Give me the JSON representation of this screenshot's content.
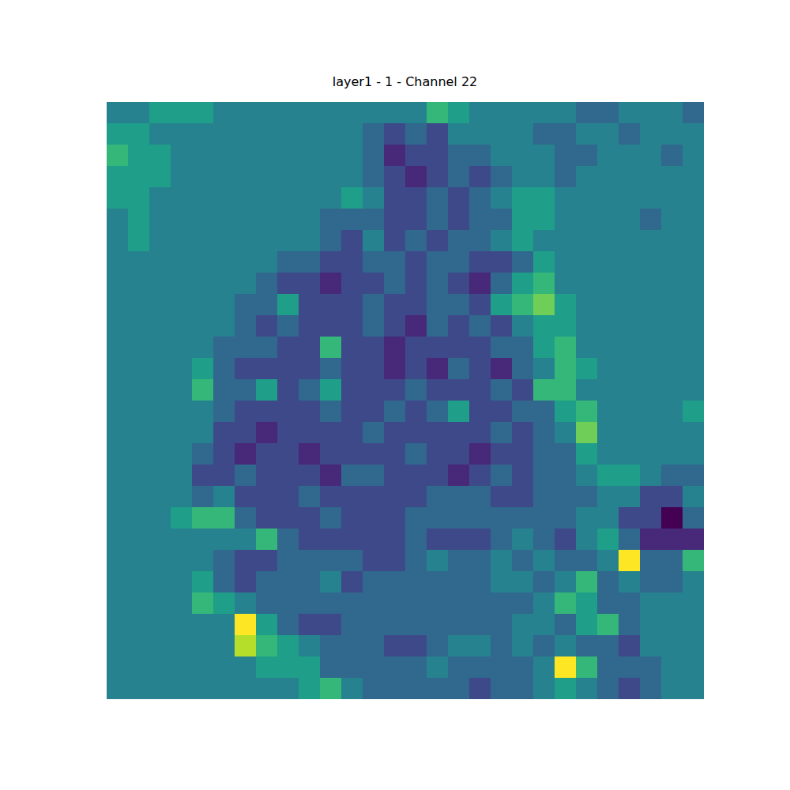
{
  "chart_data": {
    "type": "heatmap",
    "title": "layer1 - 1 - Channel 22",
    "color": "viridis",
    "tick_labels": false,
    "cells": [
      [
        4,
        4,
        5,
        5,
        5,
        4,
        4,
        4,
        4,
        4,
        4,
        4,
        4,
        4,
        4,
        6,
        5,
        4,
        4,
        4,
        4,
        4,
        3,
        3,
        4,
        4,
        4,
        3
      ],
      [
        5,
        5,
        4,
        4,
        4,
        4,
        4,
        4,
        4,
        4,
        4,
        4,
        3,
        2,
        3,
        2,
        4,
        4,
        4,
        4,
        3,
        3,
        4,
        4,
        3,
        4,
        4,
        4
      ],
      [
        6,
        5,
        5,
        4,
        4,
        4,
        4,
        4,
        4,
        4,
        4,
        4,
        3,
        1,
        2,
        2,
        3,
        3,
        4,
        4,
        4,
        3,
        3,
        4,
        4,
        4,
        3,
        4
      ],
      [
        5,
        5,
        5,
        4,
        4,
        4,
        4,
        4,
        4,
        4,
        4,
        4,
        3,
        2,
        1,
        2,
        3,
        2,
        3,
        4,
        4,
        3,
        4,
        4,
        4,
        4,
        4,
        4
      ],
      [
        5,
        5,
        4,
        4,
        4,
        4,
        4,
        4,
        4,
        4,
        4,
        5,
        4,
        2,
        2,
        3,
        2,
        3,
        4,
        5,
        5,
        4,
        4,
        4,
        4,
        4,
        4,
        4
      ],
      [
        4,
        5,
        4,
        4,
        4,
        4,
        4,
        4,
        4,
        4,
        3,
        3,
        3,
        2,
        2,
        3,
        2,
        3,
        3,
        5,
        5,
        4,
        4,
        4,
        4,
        3,
        4,
        4
      ],
      [
        4,
        5,
        4,
        4,
        4,
        4,
        4,
        4,
        4,
        4,
        3,
        2,
        4,
        2,
        3,
        2,
        3,
        3,
        4,
        5,
        4,
        4,
        4,
        4,
        4,
        4,
        4,
        4
      ],
      [
        4,
        4,
        4,
        4,
        4,
        4,
        4,
        4,
        3,
        3,
        2,
        2,
        3,
        3,
        2,
        3,
        3,
        2,
        2,
        3,
        5,
        4,
        4,
        4,
        4,
        4,
        4,
        4
      ],
      [
        4,
        4,
        4,
        4,
        4,
        4,
        4,
        3,
        2,
        2,
        1,
        2,
        2,
        3,
        2,
        3,
        2,
        1,
        3,
        5,
        6,
        4,
        4,
        4,
        4,
        4,
        4,
        4
      ],
      [
        4,
        4,
        4,
        4,
        4,
        4,
        3,
        3,
        5,
        2,
        2,
        2,
        3,
        2,
        2,
        3,
        3,
        2,
        5,
        6,
        7,
        5,
        4,
        4,
        4,
        4,
        4,
        4
      ],
      [
        4,
        4,
        4,
        4,
        4,
        4,
        3,
        2,
        3,
        2,
        2,
        2,
        3,
        2,
        1,
        3,
        2,
        3,
        2,
        4,
        5,
        5,
        4,
        4,
        4,
        4,
        4,
        4
      ],
      [
        4,
        4,
        4,
        4,
        4,
        3,
        3,
        3,
        2,
        2,
        6,
        2,
        2,
        1,
        2,
        2,
        2,
        2,
        3,
        3,
        5,
        6,
        4,
        4,
        4,
        4,
        4,
        4
      ],
      [
        4,
        4,
        4,
        4,
        5,
        3,
        2,
        2,
        2,
        2,
        3,
        2,
        2,
        1,
        2,
        1,
        3,
        2,
        1,
        3,
        4,
        6,
        5,
        4,
        4,
        4,
        4,
        4
      ],
      [
        4,
        4,
        4,
        4,
        6,
        3,
        3,
        5,
        2,
        3,
        5,
        2,
        2,
        2,
        3,
        2,
        2,
        2,
        3,
        2,
        6,
        6,
        4,
        4,
        4,
        4,
        4,
        4
      ],
      [
        4,
        4,
        4,
        4,
        4,
        3,
        2,
        2,
        2,
        2,
        3,
        2,
        2,
        3,
        2,
        3,
        5,
        2,
        2,
        3,
        3,
        5,
        6,
        4,
        4,
        4,
        4,
        5
      ],
      [
        4,
        4,
        4,
        4,
        4,
        2,
        2,
        1,
        2,
        2,
        2,
        2,
        3,
        2,
        2,
        2,
        2,
        2,
        3,
        2,
        3,
        4,
        7,
        4,
        4,
        4,
        4,
        4
      ],
      [
        4,
        4,
        4,
        4,
        3,
        2,
        1,
        2,
        2,
        1,
        2,
        2,
        2,
        2,
        3,
        2,
        2,
        1,
        2,
        2,
        3,
        3,
        5,
        4,
        4,
        4,
        4,
        4
      ],
      [
        4,
        4,
        4,
        4,
        2,
        2,
        3,
        2,
        2,
        2,
        1,
        3,
        3,
        2,
        2,
        2,
        1,
        2,
        3,
        2,
        3,
        3,
        4,
        5,
        5,
        4,
        3,
        3
      ],
      [
        4,
        4,
        4,
        4,
        3,
        4,
        2,
        2,
        2,
        3,
        2,
        2,
        2,
        2,
        2,
        3,
        3,
        3,
        2,
        2,
        3,
        3,
        3,
        4,
        4,
        2,
        2,
        4
      ],
      [
        4,
        4,
        4,
        5,
        6,
        6,
        3,
        2,
        2,
        2,
        3,
        2,
        2,
        2,
        3,
        3,
        3,
        3,
        3,
        3,
        3,
        3,
        4,
        4,
        2,
        2,
        0,
        3
      ],
      [
        4,
        4,
        4,
        4,
        4,
        4,
        4,
        6,
        3,
        2,
        2,
        2,
        2,
        2,
        3,
        2,
        2,
        2,
        3,
        4,
        3,
        2,
        4,
        5,
        3,
        1,
        1,
        1
      ],
      [
        4,
        4,
        4,
        4,
        4,
        3,
        2,
        2,
        3,
        3,
        3,
        3,
        2,
        2,
        3,
        4,
        3,
        3,
        4,
        3,
        4,
        3,
        3,
        4,
        9,
        3,
        3,
        6
      ],
      [
        4,
        4,
        4,
        4,
        5,
        3,
        2,
        3,
        3,
        3,
        4,
        2,
        3,
        3,
        3,
        3,
        3,
        3,
        4,
        4,
        3,
        4,
        6,
        3,
        4,
        3,
        3,
        4
      ],
      [
        4,
        4,
        4,
        4,
        6,
        5,
        4,
        3,
        3,
        3,
        3,
        3,
        3,
        3,
        3,
        3,
        3,
        3,
        3,
        3,
        4,
        6,
        5,
        3,
        3,
        4,
        4,
        4
      ],
      [
        4,
        4,
        4,
        4,
        4,
        4,
        9,
        5,
        3,
        2,
        2,
        3,
        3,
        3,
        3,
        3,
        3,
        3,
        3,
        4,
        4,
        3,
        5,
        6,
        3,
        4,
        4,
        4
      ],
      [
        4,
        4,
        4,
        4,
        4,
        4,
        8,
        6,
        5,
        4,
        3,
        3,
        3,
        2,
        2,
        3,
        4,
        4,
        3,
        4,
        3,
        4,
        3,
        3,
        2,
        4,
        4,
        4
      ],
      [
        4,
        4,
        4,
        4,
        4,
        4,
        4,
        5,
        5,
        5,
        3,
        3,
        3,
        3,
        3,
        4,
        3,
        3,
        3,
        3,
        4,
        9,
        6,
        3,
        3,
        3,
        4,
        4
      ],
      [
        4,
        4,
        4,
        4,
        4,
        4,
        4,
        4,
        4,
        5,
        6,
        4,
        3,
        3,
        3,
        3,
        3,
        2,
        3,
        3,
        4,
        5,
        4,
        3,
        2,
        3,
        4,
        4
      ]
    ]
  }
}
